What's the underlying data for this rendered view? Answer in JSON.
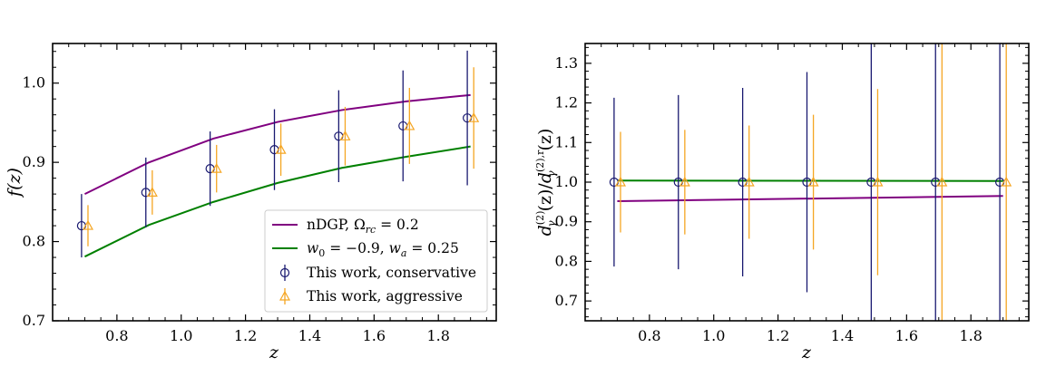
{
  "chart_data": [
    {
      "type": "line",
      "title": "",
      "xlabel": "z",
      "ylabel": "f(z)",
      "xlim": [
        0.6,
        1.98
      ],
      "ylim": [
        0.7,
        1.05
      ],
      "xticks": [
        0.8,
        1.0,
        1.2,
        1.4,
        1.6,
        1.8
      ],
      "yticks": [
        0.7,
        0.8,
        0.9,
        1.0
      ],
      "series": [
        {
          "name": "nDGP, Ω_rc = 0.2",
          "color": "#800080",
          "kind": "line",
          "x": [
            0.7,
            0.9,
            1.1,
            1.3,
            1.5,
            1.7,
            1.9
          ],
          "y": [
            0.86,
            0.9,
            0.93,
            0.951,
            0.966,
            0.977,
            0.985
          ]
        },
        {
          "name": "w0 = −0.9, wa = 0.25",
          "color": "#008000",
          "kind": "line",
          "x": [
            0.7,
            0.9,
            1.1,
            1.3,
            1.5,
            1.7,
            1.9
          ],
          "y": [
            0.781,
            0.821,
            0.85,
            0.874,
            0.893,
            0.907,
            0.92
          ]
        },
        {
          "name": "This work, conservative",
          "color": "#191970",
          "kind": "errorbar",
          "marker": "circle",
          "x": [
            0.69,
            0.89,
            1.09,
            1.29,
            1.49,
            1.69,
            1.89
          ],
          "y": [
            0.82,
            0.862,
            0.892,
            0.916,
            0.933,
            0.946,
            0.956
          ],
          "err": [
            0.04,
            0.044,
            0.047,
            0.051,
            0.058,
            0.07,
            0.085
          ]
        },
        {
          "name": "This work, aggressive",
          "color": "#f5a623",
          "kind": "errorbar",
          "marker": "triangle",
          "x": [
            0.71,
            0.91,
            1.11,
            1.31,
            1.51,
            1.71,
            1.91
          ],
          "y": [
            0.82,
            0.862,
            0.892,
            0.916,
            0.933,
            0.946,
            0.956
          ],
          "err": [
            0.026,
            0.028,
            0.03,
            0.033,
            0.037,
            0.048,
            0.064
          ]
        }
      ],
      "legend": {
        "placement": "lower-right",
        "entries": [
          "nDGP, Ω_rc = 0.2",
          "w0 = −0.9, wa = 0.25",
          "This work, conservative",
          "This work, aggressive"
        ]
      }
    },
    {
      "type": "line",
      "title": "",
      "xlabel": "z",
      "ylabel": "dγ(2)(z) / dγ(2),r(z)",
      "xlim": [
        0.6,
        1.98
      ],
      "ylim": [
        0.65,
        1.35
      ],
      "xticks": [
        0.8,
        1.0,
        1.2,
        1.4,
        1.6,
        1.8
      ],
      "yticks": [
        0.7,
        0.8,
        0.9,
        1.0,
        1.1,
        1.2,
        1.3
      ],
      "series": [
        {
          "name": "nDGP",
          "color": "#800080",
          "kind": "line",
          "x": [
            0.7,
            1.9
          ],
          "y": [
            0.952,
            0.965
          ]
        },
        {
          "name": "w0 wa",
          "color": "#008000",
          "kind": "line",
          "x": [
            0.7,
            1.9
          ],
          "y": [
            1.004,
            1.003
          ]
        },
        {
          "name": "This work, conservative",
          "color": "#191970",
          "kind": "errorbar",
          "marker": "circle",
          "x": [
            0.69,
            0.89,
            1.09,
            1.29,
            1.49,
            1.69,
            1.89
          ],
          "y": [
            1.0,
            1.0,
            1.0,
            1.0,
            1.0,
            1.0,
            1.0
          ],
          "err": [
            0.213,
            0.22,
            0.238,
            0.278,
            0.5,
            0.5,
            0.5
          ]
        },
        {
          "name": "This work, aggressive",
          "color": "#f5a623",
          "kind": "errorbar",
          "marker": "triangle",
          "x": [
            0.71,
            0.91,
            1.11,
            1.31,
            1.51,
            1.71,
            1.91
          ],
          "y": [
            1.0,
            1.0,
            1.0,
            1.0,
            1.0,
            1.0,
            1.0
          ],
          "err": [
            0.127,
            0.132,
            0.143,
            0.17,
            0.235,
            0.5,
            0.5
          ]
        }
      ]
    }
  ],
  "legend_text": {
    "ndgp_label": "nDGP, ",
    "ndgp_param": "rc",
    "ndgp_value": " = 0.2",
    "w0_label": "w",
    "w0_sub": "0",
    "w0_value": " = −0.9, ",
    "wa_label": "w",
    "wa_sub": "a",
    "wa_value": " = 0.25",
    "conservative": "This work, conservative",
    "aggressive": "This work, aggressive"
  },
  "labels": {
    "left_x": "z",
    "left_y": "f(z)",
    "right_x": "z",
    "right_y_num": "d",
    "right_y_num_sup": "(2)",
    "right_y_num_sub": "γ",
    "right_y_num_arg": "(z)",
    "right_y_slash": "/",
    "right_y_den": "d",
    "right_y_den_sup": "(2),r",
    "right_y_den_sub": "γ",
    "right_y_den_arg": "(z)"
  }
}
